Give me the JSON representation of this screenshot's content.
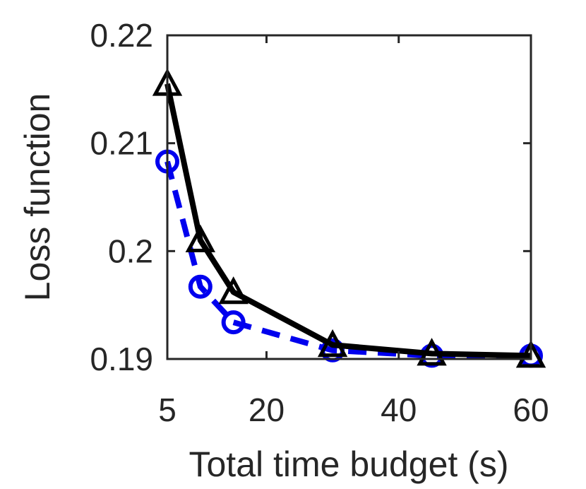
{
  "chart_data": {
    "type": "line",
    "title": "",
    "xlabel": "Total time budget (s)",
    "ylabel": "Loss function",
    "xlim": [
      5,
      60
    ],
    "ylim": [
      0.19,
      0.22
    ],
    "xticks": [
      5,
      20,
      40,
      60
    ],
    "xtick_labels": [
      "5",
      "20",
      "40",
      "60"
    ],
    "yticks": [
      0.19,
      0.2,
      0.21,
      0.22
    ],
    "ytick_labels": [
      "0.19",
      "0.2",
      "0.21",
      "0.22"
    ],
    "grid": false,
    "series": [
      {
        "color": "#000000",
        "line_style": "solid",
        "marker": "triangle",
        "x": [
          5,
          10,
          15,
          30,
          45,
          60
        ],
        "y": [
          0.2155,
          0.201,
          0.1962,
          0.1913,
          0.1905,
          0.1903
        ]
      },
      {
        "color": "#0000ee",
        "line_style": "dashed",
        "marker": "circle",
        "x": [
          5,
          10,
          15,
          30,
          45,
          60
        ],
        "y": [
          0.2083,
          0.1967,
          0.1934,
          0.1908,
          0.1903,
          0.1903
        ]
      }
    ]
  }
}
